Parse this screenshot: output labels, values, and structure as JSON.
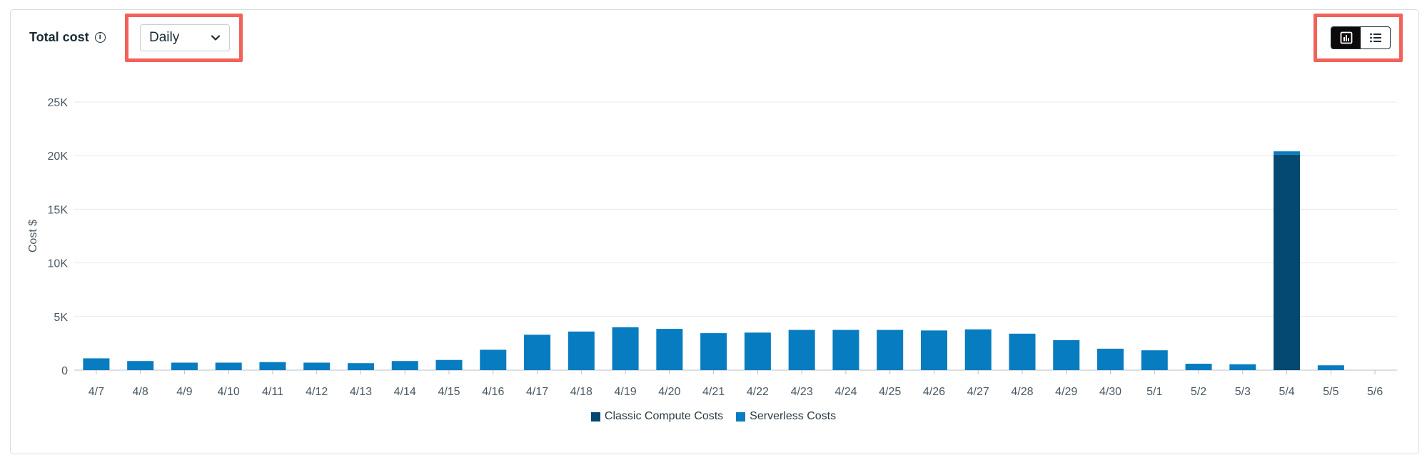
{
  "header": {
    "title": "Total cost",
    "info_icon": "info-circle-icon",
    "granularity": {
      "selected": "Daily",
      "icon": "chevron-down-icon"
    }
  },
  "view_toggle": {
    "options": [
      {
        "name": "bar-chart-view",
        "icon": "bar-chart-icon",
        "active": true
      },
      {
        "name": "list-view",
        "icon": "list-icon",
        "active": false
      }
    ]
  },
  "colors": {
    "classic": "#04496f",
    "serverless": "#077cc0",
    "annotation": "#f0625a"
  },
  "chart_data": {
    "type": "bar",
    "stacked": true,
    "title": "",
    "xlabel": "",
    "ylabel": "Cost $",
    "ylim": [
      0,
      25000
    ],
    "yticks": [
      "0",
      "5K",
      "10K",
      "15K",
      "20K",
      "25K"
    ],
    "grid": true,
    "legend_position": "bottom",
    "categories": [
      "4/7",
      "4/8",
      "4/9",
      "4/10",
      "4/11",
      "4/12",
      "4/13",
      "4/14",
      "4/15",
      "4/16",
      "4/17",
      "4/18",
      "4/19",
      "4/20",
      "4/21",
      "4/22",
      "4/23",
      "4/24",
      "4/25",
      "4/26",
      "4/27",
      "4/28",
      "4/29",
      "4/30",
      "5/1",
      "5/2",
      "5/3",
      "5/4",
      "5/5",
      "5/6"
    ],
    "series": [
      {
        "name": "Classic Compute Costs",
        "color": "#04496f",
        "values": [
          0,
          0,
          0,
          0,
          0,
          0,
          0,
          0,
          0,
          0,
          0,
          0,
          0,
          0,
          0,
          0,
          0,
          0,
          0,
          0,
          0,
          0,
          0,
          0,
          0,
          0,
          0,
          20100,
          0,
          0
        ]
      },
      {
        "name": "Serverless Costs",
        "color": "#077cc0",
        "values": [
          1100,
          850,
          700,
          700,
          750,
          700,
          650,
          850,
          950,
          1900,
          3300,
          3600,
          4000,
          3850,
          3450,
          3500,
          3750,
          3750,
          3750,
          3700,
          3800,
          3400,
          2800,
          2000,
          1850,
          600,
          550,
          300,
          450,
          0
        ]
      }
    ]
  }
}
